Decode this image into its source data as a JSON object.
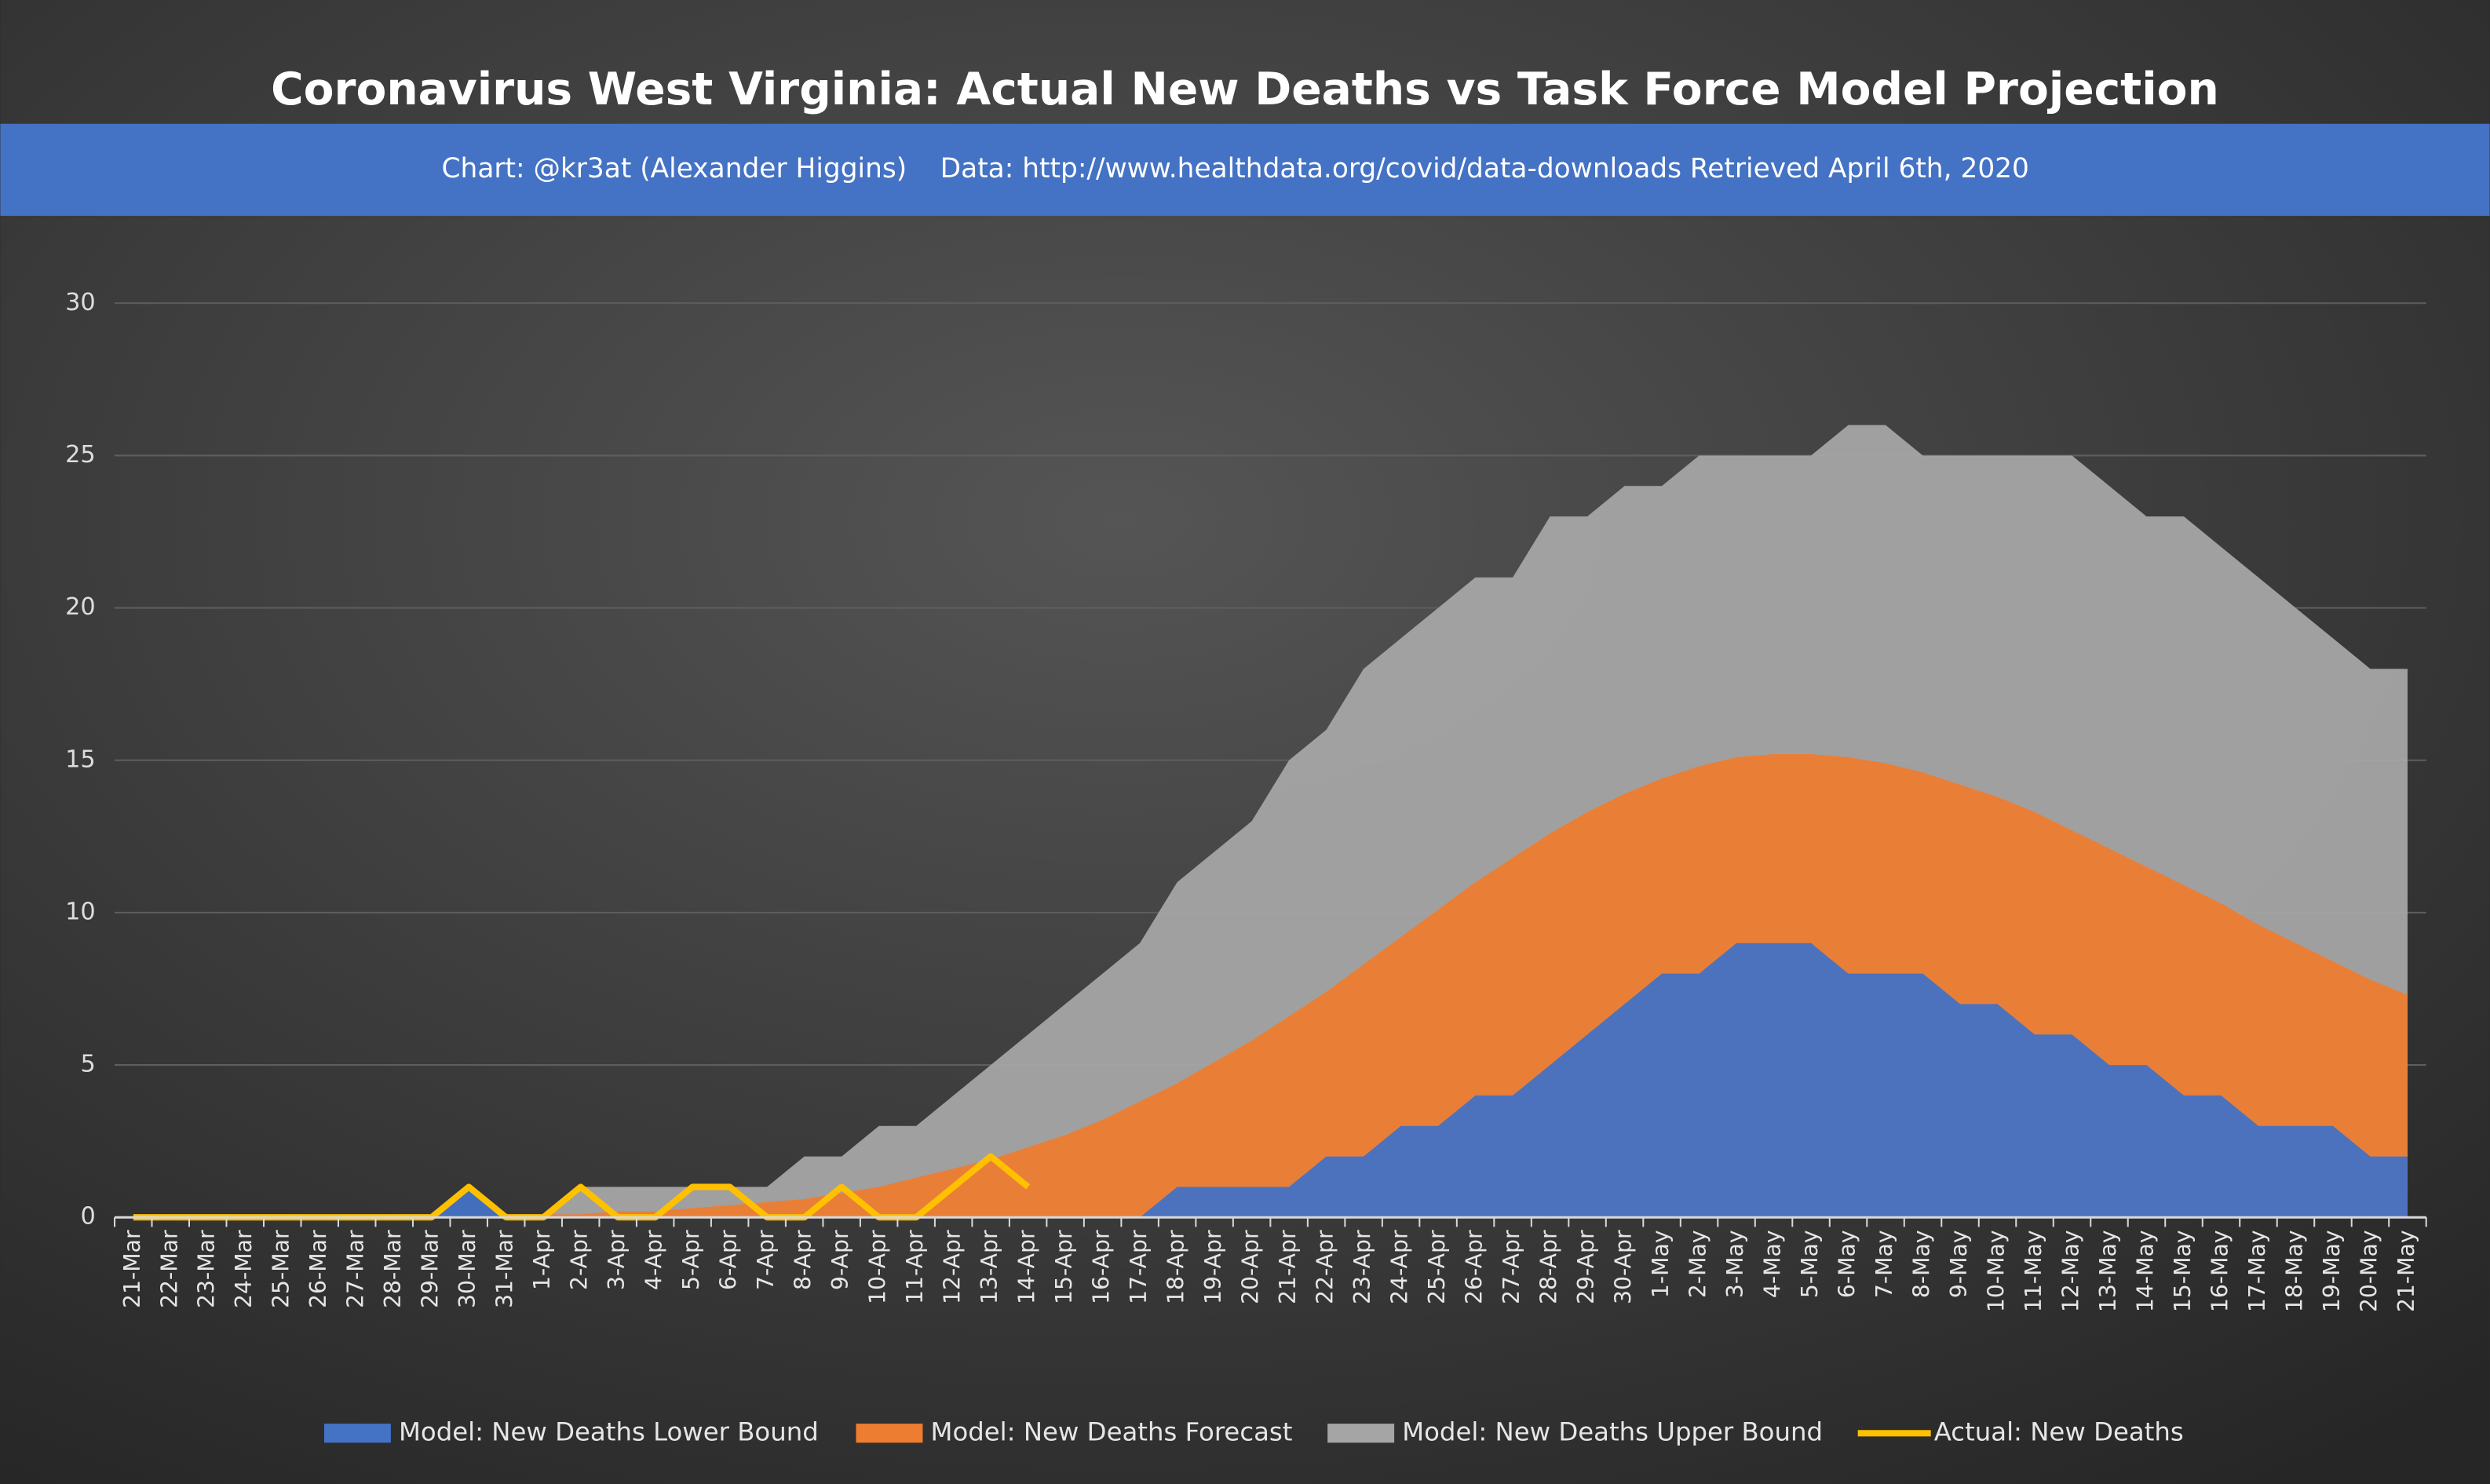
{
  "chart_data": {
    "type": "area",
    "title": "Coronavirus West Virginia: Actual New Deaths vs Task Force Model Projection",
    "credit": "Chart: @kr3at (Alexander Higgins)",
    "source": "Data: http://www.healthdata.org/covid/data-downloads Retrieved April 6th, 2020",
    "categories": [
      "21-Mar",
      "22-Mar",
      "23-Mar",
      "24-Mar",
      "25-Mar",
      "26-Mar",
      "27-Mar",
      "28-Mar",
      "29-Mar",
      "30-Mar",
      "31-Mar",
      "1-Apr",
      "2-Apr",
      "3-Apr",
      "4-Apr",
      "5-Apr",
      "6-Apr",
      "7-Apr",
      "8-Apr",
      "9-Apr",
      "10-Apr",
      "11-Apr",
      "12-Apr",
      "13-Apr",
      "14-Apr",
      "15-Apr",
      "16-Apr",
      "17-Apr",
      "18-Apr",
      "19-Apr",
      "20-Apr",
      "21-Apr",
      "22-Apr",
      "23-Apr",
      "24-Apr",
      "25-Apr",
      "26-Apr",
      "27-Apr",
      "28-Apr",
      "29-Apr",
      "30-Apr",
      "1-May",
      "2-May",
      "3-May",
      "4-May",
      "5-May",
      "6-May",
      "7-May",
      "8-May",
      "9-May",
      "10-May",
      "11-May",
      "12-May",
      "13-May",
      "14-May",
      "15-May",
      "16-May",
      "17-May",
      "18-May",
      "19-May",
      "20-May",
      "21-May"
    ],
    "series": [
      {
        "name": "Model: New Deaths Upper Bound",
        "color": "#a5a5a5",
        "kind": "area",
        "values": [
          0,
          0,
          0,
          0,
          0,
          0,
          0,
          0,
          0,
          0,
          0,
          0,
          1,
          1,
          1,
          1,
          1,
          1,
          2,
          2,
          3,
          3,
          4,
          5,
          6,
          7,
          8,
          9,
          11,
          12,
          13,
          15,
          16,
          18,
          19,
          20,
          21,
          21,
          23,
          23,
          24,
          24,
          25,
          25,
          25,
          25,
          26,
          26,
          25,
          25,
          25,
          25,
          25,
          24,
          23,
          23,
          22,
          21,
          20,
          19,
          18,
          18
        ]
      },
      {
        "name": "Model: New Deaths Forecast",
        "color": "#ed7d31",
        "kind": "area",
        "values": [
          0,
          0,
          0,
          0,
          0,
          0,
          0,
          0,
          0,
          0,
          0,
          0.1,
          0.1,
          0.2,
          0.2,
          0.3,
          0.4,
          0.5,
          0.6,
          0.8,
          1.0,
          1.3,
          1.6,
          1.9,
          2.3,
          2.7,
          3.2,
          3.8,
          4.4,
          5.1,
          5.8,
          6.6,
          7.4,
          8.3,
          9.2,
          10.1,
          11.0,
          11.8,
          12.6,
          13.3,
          13.9,
          14.4,
          14.8,
          15.1,
          15.2,
          15.2,
          15.1,
          14.9,
          14.6,
          14.2,
          13.8,
          13.3,
          12.7,
          12.1,
          11.5,
          10.9,
          10.3,
          9.6,
          9.0,
          8.4,
          7.8,
          7.3
        ]
      },
      {
        "name": "Model: New Deaths Lower Bound",
        "color": "#4472c4",
        "kind": "area",
        "values": [
          0,
          0,
          0,
          0,
          0,
          0,
          0,
          0,
          0,
          1,
          0,
          0,
          0,
          0,
          0,
          0,
          0,
          0,
          0,
          0,
          0,
          0,
          0,
          0,
          0,
          0,
          0,
          0,
          1,
          1,
          1,
          1,
          2,
          2,
          3,
          3,
          4,
          4,
          5,
          6,
          7,
          8,
          8,
          9,
          9,
          9,
          8,
          8,
          8,
          7,
          7,
          6,
          6,
          5,
          5,
          4,
          4,
          3,
          3,
          3,
          2,
          2
        ]
      },
      {
        "name": "Actual: New Deaths",
        "color": "#ffc000",
        "kind": "line",
        "values": [
          0,
          0,
          0,
          0,
          0,
          0,
          0,
          0,
          0,
          1,
          0,
          0,
          1,
          0,
          0,
          1,
          1,
          0,
          0,
          1,
          0,
          0,
          1,
          2,
          1,
          null,
          null,
          null,
          null,
          null,
          null,
          null,
          null,
          null,
          null,
          null,
          null,
          null,
          null,
          null,
          null,
          null,
          null,
          null,
          null,
          null,
          null,
          null,
          null,
          null,
          null,
          null,
          null,
          null,
          null,
          null,
          null,
          null,
          null,
          null,
          null,
          null
        ]
      }
    ],
    "legend_order": [
      2,
      1,
      0,
      3
    ],
    "ylim": [
      0,
      30
    ],
    "yticks": [
      0,
      5,
      10,
      15,
      20,
      25,
      30
    ],
    "grid": true,
    "legend": "bottom"
  }
}
